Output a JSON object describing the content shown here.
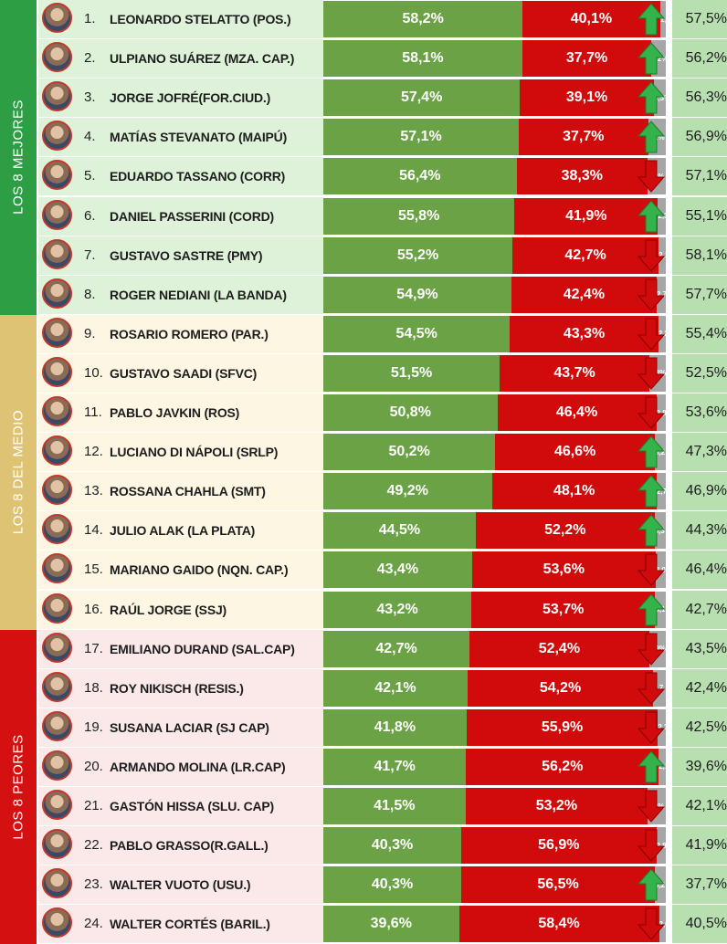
{
  "colors": {
    "positive": "#6ba245",
    "negative": "#d10b0b",
    "ns": "#a6a6a6",
    "up": "#34b34a",
    "down": "#d10b0b"
  },
  "groups": [
    {
      "label": "LOS 8 MEJORES",
      "color": "#2e9e45",
      "row_bg": "#ddf2d8",
      "from": 0,
      "to": 8
    },
    {
      "label": "LOS 8 DEL MEDIO",
      "color": "#dfc374",
      "row_bg": "#fdf6e3",
      "from": 8,
      "to": 16
    },
    {
      "label": "LOS 8 PEORES",
      "color": "#d41010",
      "row_bg": "#fbe9ea",
      "from": 16,
      "to": 24
    }
  ],
  "chart_data": {
    "type": "bar",
    "stacked": true,
    "series": [
      {
        "name": "positive",
        "values": [
          58.2,
          58.1,
          57.4,
          57.1,
          56.4,
          55.8,
          55.2,
          54.9,
          54.5,
          51.5,
          50.8,
          50.2,
          49.2,
          44.5,
          43.4,
          43.2,
          42.7,
          42.1,
          41.8,
          41.7,
          41.5,
          40.3,
          40.3,
          39.6
        ]
      },
      {
        "name": "negative",
        "values": [
          40.1,
          37.7,
          39.1,
          37.7,
          38.3,
          41.9,
          42.7,
          42.4,
          43.3,
          43.7,
          46.4,
          46.6,
          48.1,
          52.2,
          53.6,
          53.7,
          52.4,
          54.2,
          55.9,
          56.2,
          53.2,
          56.9,
          56.5,
          58.4
        ]
      },
      {
        "name": "ns",
        "values": [
          1.7,
          4.2,
          3.5,
          5.2,
          5.3,
          2.3,
          2.1,
          2.7,
          2.2,
          4.8,
          2.8,
          3.2,
          2.7,
          3.3,
          3.0,
          3.1,
          4.9,
          3.7,
          2.3,
          2.1,
          5.3,
          2.8,
          3.2,
          2.0
        ]
      }
    ]
  },
  "rows": [
    {
      "rank": "1.",
      "name": "LEONARDO STELATTO (POS.)",
      "pos": "58,2%",
      "neg": "40,1%",
      "ns": "1,7",
      "trend": "up",
      "prev": "57,5%"
    },
    {
      "rank": "2.",
      "name": "ULPIANO SUÁREZ (MZA. CAP.)",
      "pos": "58,1%",
      "neg": "37,7%",
      "ns": "4,2%",
      "trend": "up",
      "prev": "56,2%"
    },
    {
      "rank": "3.",
      "name": "JORGE JOFRÉ(FOR.CIUD.)",
      "pos": "57,4%",
      "neg": "39,1%",
      "ns": "3,5%",
      "trend": "up",
      "prev": "56,3%"
    },
    {
      "rank": "4.",
      "name": "MATÍAS STEVANATO (MAIPÚ)",
      "pos": "57,1%",
      "neg": "37,7%",
      "ns": "5,2%",
      "trend": "up",
      "prev": "56,9%"
    },
    {
      "rank": "5.",
      "name": "EDUARDO TASSANO (CORR)",
      "pos": "56,4%",
      "neg": "38,3%",
      "ns": "5,3%",
      "trend": "down",
      "prev": "57,1%"
    },
    {
      "rank": "6.",
      "name": "DANIEL PASSERINI (CORD)",
      "pos": "55,8%",
      "neg": "41,9%",
      "ns": "2,3",
      "trend": "up",
      "prev": "55,1%"
    },
    {
      "rank": "7.",
      "name": "GUSTAVO SASTRE (PMY)",
      "pos": "55,2%",
      "neg": "42,7%",
      "ns": "2,1",
      "trend": "down",
      "prev": "58,1%"
    },
    {
      "rank": "8.",
      "name": "ROGER NEDIANI (LA BANDA)",
      "pos": "54,9%",
      "neg": "42,4%",
      "ns": "2,7",
      "trend": "down",
      "prev": "57,7%"
    },
    {
      "rank": "9.",
      "name": "ROSARIO ROMERO (PAR.)",
      "pos": "54,5%",
      "neg": "43,3%",
      "ns": "2,2",
      "trend": "down",
      "prev": "55,4%"
    },
    {
      "rank": "10.",
      "name": "GUSTAVO SAADI (SFVC)",
      "pos": "51,5%",
      "neg": "43,7%",
      "ns": "4,8%",
      "trend": "down",
      "prev": "52,5%"
    },
    {
      "rank": "11.",
      "name": "PABLO JAVKIN (ROS)",
      "pos": "50,8%",
      "neg": "46,4%",
      "ns": "2,8",
      "trend": "down",
      "prev": "53,6%"
    },
    {
      "rank": "12.",
      "name": "LUCIANO DI NÁPOLI (SRLP)",
      "pos": "50,2%",
      "neg": "46,6%",
      "ns": "3,2",
      "trend": "up",
      "prev": "47,3%"
    },
    {
      "rank": "13.",
      "name": "ROSSANA CHAHLA (SMT)",
      "pos": "49,2%",
      "neg": "48,1%",
      "ns": "2,7",
      "trend": "up",
      "prev": "46,9%"
    },
    {
      "rank": "14.",
      "name": "JULIO ALAK (LA PLATA)",
      "pos": "44,5%",
      "neg": "52,2%",
      "ns": "3,3",
      "trend": "up",
      "prev": "44,3%"
    },
    {
      "rank": "15.",
      "name": "MARIANO GAIDO (NQN. CAP.)",
      "pos": "43,4%",
      "neg": "53,6%",
      "ns": "3,0",
      "trend": "down",
      "prev": "46,4%"
    },
    {
      "rank": "16.",
      "name": "RAÚL JORGE (SSJ)",
      "pos": "43,2%",
      "neg": "53,7%",
      "ns": "3,1",
      "trend": "up",
      "prev": "42,7%"
    },
    {
      "rank": "17.",
      "name": "EMILIANO DURAND (SAL.CAP)",
      "pos": "42,7%",
      "neg": "52,4%",
      "ns": "4,9%",
      "trend": "down",
      "prev": "43,5%"
    },
    {
      "rank": "18.",
      "name": "ROY NIKISCH (RESIS.)",
      "pos": "42,1%",
      "neg": "54,2%",
      "ns": "3,7",
      "trend": "down",
      "prev": "42,4%"
    },
    {
      "rank": "19.",
      "name": "SUSANA LACIAR (SJ CAP)",
      "pos": "41,8%",
      "neg": "55,9%",
      "ns": "2,3",
      "trend": "down",
      "prev": "42,5%"
    },
    {
      "rank": "20.",
      "name": "ARMANDO MOLINA (LR.CAP)",
      "pos": "41,7%",
      "neg": "56,2%",
      "ns": "2,1",
      "trend": "up",
      "prev": "39,6%"
    },
    {
      "rank": "21.",
      "name": "GASTÓN HISSA (SLU. CAP)",
      "pos": "41,5%",
      "neg": "53,2%",
      "ns": "5,3%",
      "trend": "down",
      "prev": "42,1%"
    },
    {
      "rank": "22.",
      "name": "PABLO GRASSO(R.GALL.)",
      "pos": "40,3%",
      "neg": "56,9%",
      "ns": "2,8",
      "trend": "down",
      "prev": "41,9%"
    },
    {
      "rank": "23.",
      "name": "WALTER VUOTO (USU.)",
      "pos": "40,3%",
      "neg": "56,5%",
      "ns": "3,2",
      "trend": "up",
      "prev": "37,7%"
    },
    {
      "rank": "24.",
      "name": "WALTER CORTÉS (BARIL.)",
      "pos": "39,6%",
      "neg": "58,4%",
      "ns": "2,0",
      "trend": "down",
      "prev": "40,5%"
    }
  ]
}
